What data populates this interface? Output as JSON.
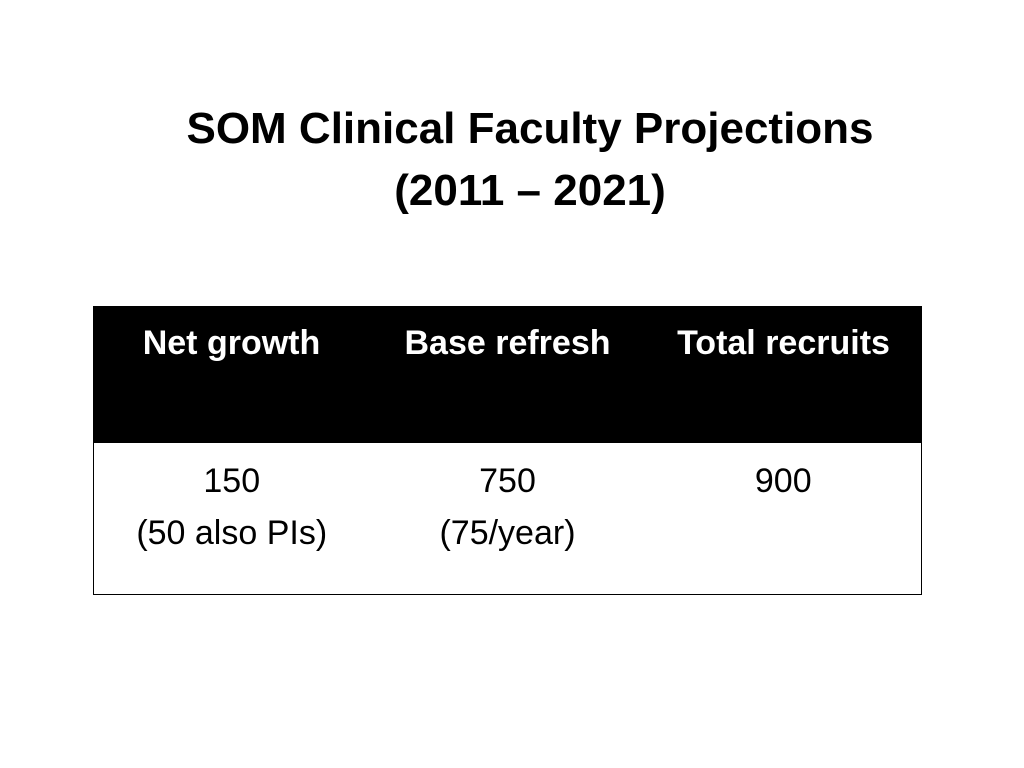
{
  "slide": {
    "title_line1": "SOM Clinical Faculty Projections",
    "title_line2": "(2011 – 2021)"
  },
  "table": {
    "headers": [
      "Net growth",
      "Base refresh",
      "Total recruits"
    ],
    "rows": [
      {
        "net_growth": [
          "150",
          "(50 also PIs)"
        ],
        "base_refresh": [
          "750",
          "(75/year)"
        ],
        "total_recruits": [
          "900"
        ]
      }
    ]
  }
}
